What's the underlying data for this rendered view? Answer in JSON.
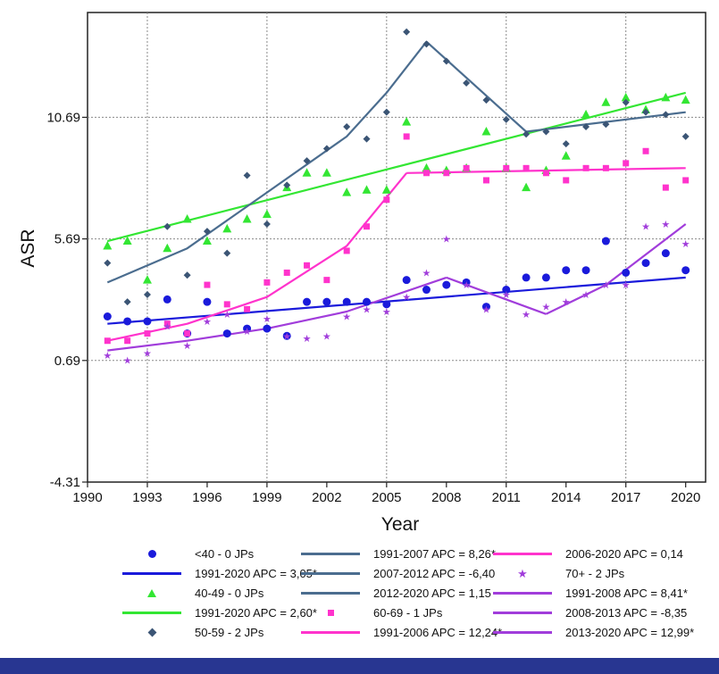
{
  "colors": {
    "lt40": "#1a1adb",
    "a40_49": "#33e633",
    "a50_59": "#3b5575",
    "a60_69": "#ff33cc",
    "a70p": "#a13ddb",
    "seg5059": "#4b6d8f",
    "grid": "#8a8a8a",
    "band": "#283691"
  },
  "chart_data": {
    "type": "scatter",
    "xlabel": "Year",
    "ylabel": "ASR",
    "xlim": [
      1990,
      2021
    ],
    "ylim": [
      -4.31,
      15.0
    ],
    "xticks": [
      1990,
      1993,
      1996,
      1999,
      2002,
      2005,
      2008,
      2011,
      2014,
      2017,
      2020
    ],
    "yticks": [
      -4.31,
      0.69,
      5.69,
      10.69
    ],
    "ytick_labels": [
      "-4.31",
      "0.69",
      "5.69",
      "10.69"
    ],
    "grid_x": [
      1993,
      1999,
      2005,
      2011,
      2017
    ],
    "grid_y": [
      0.69,
      5.69,
      10.69
    ],
    "series": [
      {
        "name": "<40 - 0 JPs",
        "marker": "circle",
        "color": "#1a1adb",
        "x": [
          1991,
          1992,
          1993,
          1994,
          1995,
          1996,
          1997,
          1998,
          1999,
          2000,
          2001,
          2002,
          2003,
          2004,
          2005,
          2006,
          2007,
          2008,
          2009,
          2010,
          2011,
          2012,
          2013,
          2014,
          2015,
          2016,
          2017,
          2018,
          2019,
          2020
        ],
        "y": [
          2.5,
          2.3,
          2.3,
          3.2,
          1.8,
          3.1,
          1.8,
          2.0,
          2.0,
          1.7,
          3.1,
          3.1,
          3.1,
          3.1,
          3.0,
          4.0,
          3.6,
          3.8,
          3.9,
          2.9,
          3.6,
          4.1,
          4.1,
          4.4,
          4.4,
          5.6,
          4.3,
          4.7,
          5.1,
          4.4
        ]
      },
      {
        "name": "40-49 - 0 JPs",
        "marker": "triangle",
        "color": "#33e633",
        "x": [
          1991,
          1992,
          1993,
          1994,
          1995,
          1996,
          1997,
          1998,
          1999,
          2000,
          2001,
          2002,
          2003,
          2004,
          2005,
          2006,
          2007,
          2008,
          2009,
          2010,
          2011,
          2012,
          2013,
          2014,
          2015,
          2016,
          2017,
          2018,
          2019,
          2020
        ],
        "y": [
          5.4,
          5.6,
          4.0,
          5.3,
          6.5,
          5.6,
          6.1,
          6.5,
          6.7,
          7.8,
          8.4,
          8.4,
          7.6,
          7.7,
          7.7,
          10.5,
          8.6,
          8.5,
          8.6,
          10.1,
          8.6,
          7.8,
          8.5,
          9.1,
          10.8,
          11.3,
          11.5,
          11.0,
          11.5,
          11.4
        ]
      },
      {
        "name": "50-59 - 2 JPs",
        "marker": "diamond",
        "color": "#3b5575",
        "x": [
          1991,
          1992,
          1993,
          1994,
          1995,
          1996,
          1997,
          1998,
          1999,
          2000,
          2001,
          2002,
          2003,
          2004,
          2005,
          2006,
          2007,
          2008,
          2009,
          2010,
          2011,
          2012,
          2013,
          2014,
          2015,
          2016,
          2017,
          2018,
          2019,
          2020
        ],
        "y": [
          4.7,
          3.1,
          3.4,
          6.2,
          4.2,
          6.0,
          5.1,
          8.3,
          6.3,
          7.9,
          8.9,
          9.4,
          10.3,
          9.8,
          10.9,
          14.2,
          13.7,
          13.0,
          12.1,
          11.4,
          10.6,
          10.0,
          10.1,
          9.6,
          10.3,
          10.4,
          11.3,
          10.9,
          10.8,
          9.9
        ]
      },
      {
        "name": "60-69 - 1 JPs",
        "marker": "square",
        "color": "#ff33cc",
        "x": [
          1991,
          1992,
          1993,
          1994,
          1995,
          1996,
          1997,
          1998,
          1999,
          2000,
          2001,
          2002,
          2003,
          2004,
          2005,
          2006,
          2007,
          2008,
          2009,
          2010,
          2011,
          2012,
          2013,
          2014,
          2015,
          2016,
          2017,
          2018,
          2019,
          2020
        ],
        "y": [
          1.5,
          1.5,
          1.8,
          2.2,
          1.8,
          3.8,
          3.0,
          2.8,
          3.9,
          4.3,
          4.6,
          4.0,
          5.2,
          6.2,
          7.3,
          9.9,
          8.4,
          8.4,
          8.6,
          8.1,
          8.6,
          8.6,
          8.4,
          8.1,
          8.6,
          8.6,
          8.8,
          9.3,
          7.8,
          8.1
        ]
      },
      {
        "name": "70+ - 2 JPs",
        "marker": "star",
        "color": "#a13ddb",
        "x": [
          1991,
          1992,
          1993,
          1994,
          1995,
          1996,
          1997,
          1998,
          1999,
          2000,
          2001,
          2002,
          2003,
          2004,
          2005,
          2006,
          2007,
          2008,
          2009,
          2010,
          2011,
          2012,
          2013,
          2014,
          2015,
          2016,
          2017,
          2018,
          2019,
          2020
        ],
        "y": [
          0.9,
          0.7,
          1.0,
          2.1,
          1.3,
          2.3,
          2.6,
          1.9,
          2.4,
          1.7,
          1.6,
          1.7,
          2.5,
          2.8,
          2.7,
          3.3,
          4.3,
          5.7,
          3.8,
          2.8,
          3.4,
          2.6,
          2.9,
          3.1,
          3.4,
          3.8,
          3.8,
          6.2,
          6.3,
          5.5
        ]
      }
    ],
    "trend_lines": [
      {
        "name": "1991-2020 APC = 3,05*",
        "color": "#1a1adb",
        "x": [
          1991,
          2020
        ],
        "y": [
          2.2,
          4.1
        ]
      },
      {
        "name": "1991-2020 APC = 2,60*",
        "color": "#33e633",
        "x": [
          1991,
          2020
        ],
        "y": [
          5.6,
          11.7
        ]
      },
      {
        "name": "1991-2007 APC = 8,26*",
        "color": "#4b6d8f",
        "x": [
          1991,
          1995,
          1999,
          2003,
          2005,
          2007
        ],
        "y": [
          3.9,
          5.3,
          7.6,
          9.9,
          11.7,
          13.8
        ]
      },
      {
        "name": "2007-2012 APC = -6,40",
        "color": "#4b6d8f",
        "x": [
          2007,
          2012
        ],
        "y": [
          13.8,
          10.1
        ]
      },
      {
        "name": "2012-2020 APC = 1,15",
        "color": "#4b6d8f",
        "x": [
          2012,
          2020
        ],
        "y": [
          10.1,
          10.9
        ]
      },
      {
        "name": "1991-2006 APC = 12,24*",
        "color": "#ff33cc",
        "x": [
          1991,
          1995,
          1999,
          2003,
          2006
        ],
        "y": [
          1.5,
          2.2,
          3.3,
          5.4,
          8.4
        ]
      },
      {
        "name": "2006-2020 APC = 0,14",
        "color": "#ff33cc",
        "x": [
          2006,
          2020
        ],
        "y": [
          8.4,
          8.6
        ]
      },
      {
        "name": "1991-2008 APC = 8,41*",
        "color": "#a13ddb",
        "x": [
          1991,
          1995,
          1999,
          2003,
          2008
        ],
        "y": [
          1.1,
          1.5,
          2.0,
          2.7,
          4.1
        ]
      },
      {
        "name": "2008-2013 APC = -8,35",
        "color": "#a13ddb",
        "x": [
          2008,
          2013
        ],
        "y": [
          4.1,
          2.6
        ]
      },
      {
        "name": "2013-2020 APC = 12,99*",
        "color": "#a13ddb",
        "x": [
          2013,
          2016,
          2020
        ],
        "y": [
          2.6,
          3.8,
          6.3
        ]
      }
    ]
  },
  "legend": [
    {
      "label": "<40 - 0 JPs",
      "kind": "dot",
      "color": "#1a1adb"
    },
    {
      "label": "1991-2020 APC = 3,05*",
      "kind": "line",
      "color": "#1a1adb"
    },
    {
      "label": "40-49 - 0 JPs",
      "kind": "tri",
      "color": "#33e633"
    },
    {
      "label": "1991-2020 APC = 2,60*",
      "kind": "line",
      "color": "#33e633"
    },
    {
      "label": "50-59 - 2 JPs",
      "kind": "diam",
      "color": "#3b5575"
    },
    {
      "label": "1991-2007 APC = 8,26*",
      "kind": "line",
      "color": "#4b6d8f"
    },
    {
      "label": "2007-2012 APC = -6,40",
      "kind": "line",
      "color": "#4b6d8f"
    },
    {
      "label": "2012-2020 APC = 1,15",
      "kind": "line",
      "color": "#4b6d8f"
    },
    {
      "label": "60-69 - 1 JPs",
      "kind": "sq",
      "color": "#ff33cc"
    },
    {
      "label": "1991-2006 APC = 12,24*",
      "kind": "line",
      "color": "#ff33cc"
    },
    {
      "label": "2006-2020 APC = 0,14",
      "kind": "line",
      "color": "#ff33cc"
    },
    {
      "label": "70+ - 2 JPs",
      "kind": "star",
      "color": "#a13ddb"
    },
    {
      "label": "1991-2008 APC = 8,41*",
      "kind": "line",
      "color": "#a13ddb"
    },
    {
      "label": "2008-2013 APC = -8,35",
      "kind": "line",
      "color": "#a13ddb"
    },
    {
      "label": "2013-2020 APC = 12,99*",
      "kind": "line",
      "color": "#a13ddb"
    }
  ]
}
